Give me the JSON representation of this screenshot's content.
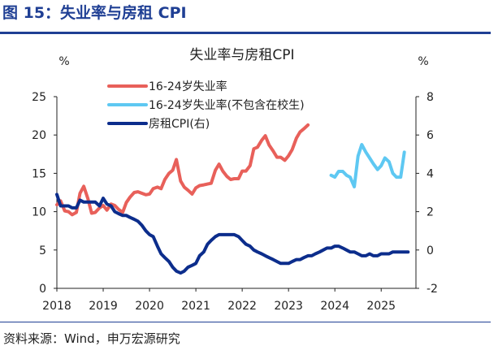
{
  "figure": {
    "title": "图 15：失业率与房租 CPI",
    "source": "资料来源：Wind，申万宏源研究"
  },
  "chart_data": {
    "type": "line",
    "title": "失业率与房租CPI",
    "left_unit": "%",
    "right_unit": "%",
    "x_range": [
      2018.0,
      2025.75
    ],
    "left_ylim": [
      0,
      25
    ],
    "right_ylim": [
      -2,
      8
    ],
    "left_ticks": [
      0,
      5,
      10,
      15,
      20,
      25
    ],
    "right_ticks": [
      -2,
      0,
      2,
      4,
      6,
      8
    ],
    "x_ticks": [
      2018,
      2019,
      2020,
      2021,
      2022,
      2023,
      2024,
      2025
    ],
    "legend": [
      {
        "label": "16-24岁失业率",
        "color": "#e8605a"
      },
      {
        "label": "16-24岁失业率(不包含在校生)",
        "color": "#5ec8f2"
      },
      {
        "label": "房租CPI(右)",
        "color": "#0c2d8c"
      }
    ],
    "series": [
      {
        "name": "16-24岁失业率",
        "axis": "left",
        "color": "#e8605a",
        "x": [
          2018.0,
          2018.08,
          2018.17,
          2018.25,
          2018.33,
          2018.42,
          2018.5,
          2018.58,
          2018.67,
          2018.75,
          2018.83,
          2018.92,
          2019.0,
          2019.08,
          2019.17,
          2019.25,
          2019.33,
          2019.42,
          2019.5,
          2019.58,
          2019.67,
          2019.75,
          2019.83,
          2019.92,
          2020.0,
          2020.08,
          2020.17,
          2020.25,
          2020.33,
          2020.42,
          2020.5,
          2020.58,
          2020.67,
          2020.75,
          2020.83,
          2020.92,
          2021.0,
          2021.08,
          2021.17,
          2021.25,
          2021.33,
          2021.42,
          2021.5,
          2021.58,
          2021.67,
          2021.75,
          2021.83,
          2021.92,
          2022.0,
          2022.08,
          2022.17,
          2022.25,
          2022.33,
          2022.42,
          2022.5,
          2022.58,
          2022.67,
          2022.75,
          2022.83,
          2022.92,
          2023.0,
          2023.08,
          2023.17,
          2023.25,
          2023.33,
          2023.42
        ],
        "values": [
          10.9,
          11.4,
          10.1,
          10.0,
          9.6,
          9.9,
          12.4,
          13.3,
          11.7,
          9.8,
          9.9,
          10.5,
          10.8,
          10.2,
          11.0,
          10.8,
          10.3,
          9.9,
          11.2,
          11.9,
          12.5,
          12.6,
          12.4,
          12.2,
          12.3,
          13.0,
          13.2,
          13.0,
          14.2,
          15.0,
          15.4,
          16.8,
          14.0,
          13.2,
          12.8,
          12.3,
          13.1,
          13.4,
          13.5,
          13.6,
          13.7,
          15.4,
          16.2,
          15.3,
          14.6,
          14.2,
          14.3,
          14.3,
          15.3,
          15.3,
          16.0,
          18.2,
          18.4,
          19.3,
          19.9,
          18.7,
          17.9,
          17.1,
          17.1,
          16.7,
          17.3,
          18.1,
          19.6,
          20.4,
          20.8,
          21.3
        ]
      },
      {
        "name": "16-24岁失业率(不包含在校生)",
        "axis": "right",
        "color": "#5ec8f2",
        "x": [
          2023.92,
          2024.0,
          2024.08,
          2024.17,
          2024.25,
          2024.33,
          2024.42,
          2024.5,
          2024.58,
          2024.67,
          2024.75,
          2024.83,
          2024.92,
          2025.0,
          2025.08,
          2025.17,
          2025.25,
          2025.33,
          2025.42,
          2025.5
        ],
        "values": [
          3.9,
          3.8,
          4.1,
          4.1,
          3.9,
          3.8,
          3.3,
          4.9,
          5.5,
          5.1,
          4.8,
          4.5,
          4.2,
          4.4,
          4.8,
          4.6,
          4.0,
          3.8,
          3.8,
          5.1
        ]
      },
      {
        "name": "房租CPI(右)",
        "axis": "right",
        "color": "#0c2d8c",
        "x": [
          2018.0,
          2018.08,
          2018.17,
          2018.25,
          2018.33,
          2018.42,
          2018.5,
          2018.58,
          2018.67,
          2018.75,
          2018.83,
          2018.92,
          2019.0,
          2019.08,
          2019.17,
          2019.25,
          2019.33,
          2019.42,
          2019.5,
          2019.58,
          2019.67,
          2019.75,
          2019.83,
          2019.92,
          2020.0,
          2020.08,
          2020.17,
          2020.25,
          2020.33,
          2020.42,
          2020.5,
          2020.58,
          2020.67,
          2020.75,
          2020.83,
          2020.92,
          2021.0,
          2021.08,
          2021.17,
          2021.25,
          2021.33,
          2021.42,
          2021.5,
          2021.58,
          2021.67,
          2021.75,
          2021.83,
          2021.92,
          2022.0,
          2022.08,
          2022.17,
          2022.25,
          2022.33,
          2022.42,
          2022.5,
          2022.58,
          2022.67,
          2022.75,
          2022.83,
          2022.92,
          2023.0,
          2023.08,
          2023.17,
          2023.25,
          2023.33,
          2023.42,
          2023.5,
          2023.58,
          2023.67,
          2023.75,
          2023.83,
          2023.92,
          2024.0,
          2024.08,
          2024.17,
          2024.25,
          2024.33,
          2024.42,
          2024.5,
          2024.58,
          2024.67,
          2024.75,
          2024.83,
          2024.92,
          2025.0,
          2025.08,
          2025.17,
          2025.25,
          2025.33,
          2025.42,
          2025.5,
          2025.58
        ],
        "values": [
          2.9,
          2.3,
          2.3,
          2.3,
          2.2,
          2.2,
          2.6,
          2.5,
          2.5,
          2.5,
          2.5,
          2.3,
          2.7,
          2.4,
          2.3,
          2.0,
          1.9,
          1.8,
          1.8,
          1.7,
          1.6,
          1.5,
          1.3,
          1.0,
          0.8,
          0.7,
          0.2,
          -0.2,
          -0.4,
          -0.6,
          -0.9,
          -1.1,
          -1.2,
          -1.1,
          -0.9,
          -0.8,
          -0.7,
          -0.3,
          -0.1,
          0.3,
          0.5,
          0.7,
          0.8,
          0.8,
          0.8,
          0.8,
          0.8,
          0.7,
          0.5,
          0.3,
          0.2,
          0.0,
          -0.1,
          -0.2,
          -0.3,
          -0.4,
          -0.5,
          -0.6,
          -0.7,
          -0.7,
          -0.7,
          -0.6,
          -0.5,
          -0.5,
          -0.4,
          -0.3,
          -0.3,
          -0.2,
          -0.1,
          0.0,
          0.1,
          0.1,
          0.2,
          0.2,
          0.1,
          0.0,
          -0.1,
          -0.1,
          -0.2,
          -0.3,
          -0.3,
          -0.2,
          -0.3,
          -0.3,
          -0.2,
          -0.2,
          -0.2,
          -0.1,
          -0.1,
          -0.1,
          -0.1,
          -0.1
        ]
      }
    ]
  }
}
